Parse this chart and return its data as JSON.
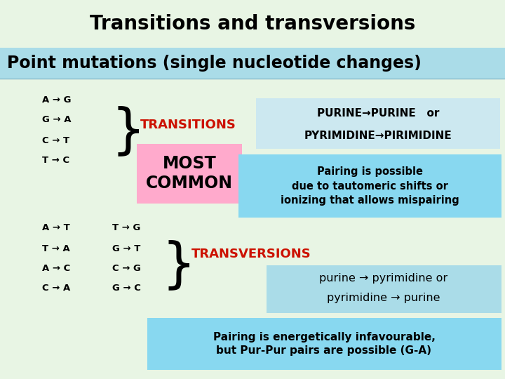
{
  "title": "Transitions and transversions",
  "subtitle": "Point mutations (single nucleotide changes)",
  "bg_color": "#e8f5e4",
  "subtitle_bg": "#aadce8",
  "title_fontsize": 20,
  "subtitle_fontsize": 17,
  "transitions_label": "TRANSITIONS",
  "most_common_label": "MOST\nCOMMON",
  "most_common_bg": "#ffaacc",
  "purine_line1": "PURINE→PURINE   or",
  "purine_line2": "PYRIMIDINE→PIRIMIDINE",
  "purine_bg": "#cce8f0",
  "pairing_transitions_text": "Pairing is possible\ndue to tautomeric shifts or\nionizing that allows mispairing",
  "pairing_transitions_bg": "#88d8f0",
  "transversions_label": "TRANSVERSIONS",
  "transversions_line1": "purine → pyrimidine or",
  "transversions_line2": "pyrimidine → purine",
  "transversions_bg": "#aadce8",
  "pairing_transversions_text": "Pairing is energetically infavourable,\nbut Pur-Pur pairs are possible (G-A)",
  "pairing_transversions_bg": "#88d8f0",
  "transitions_mutations": [
    "A → G",
    "G → A",
    "C → T",
    "T → C"
  ],
  "transversions_left": [
    "A → T",
    "T → A",
    "A → C",
    "C → A"
  ],
  "transversions_right": [
    "T → G",
    "G → T",
    "C → G",
    "G → C"
  ],
  "red_color": "#cc1100",
  "black_color": "#000000"
}
